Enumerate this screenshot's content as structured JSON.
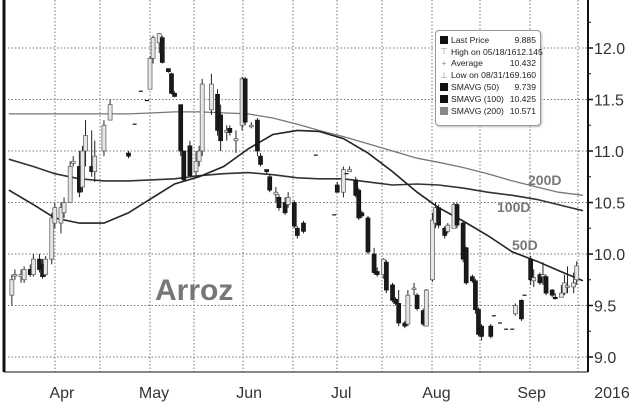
{
  "chart_data": {
    "type": "candlestick",
    "watermark": "Arroz",
    "y_ticks": [
      "12.0",
      "11.5",
      "11.0",
      "10.5",
      "10.0",
      "9.5",
      "9.0"
    ],
    "ylim": [
      8.95,
      12.45
    ],
    "x_ticks": [
      {
        "label": "Apr",
        "date": "2016-04-15"
      },
      {
        "label": "May",
        "date": "2016-05-15"
      },
      {
        "label": "Jun",
        "date": "2016-06-15"
      },
      {
        "label": "Jul",
        "date": "2016-07-15"
      },
      {
        "label": "Aug",
        "date": "2016-08-15"
      },
      {
        "label": "Sep",
        "date": "2016-09-15"
      }
    ],
    "year_label": "2016",
    "grid": true,
    "colors": {
      "up": "#e6e6e6",
      "down": "#1a1a1a",
      "ma50": "#222222",
      "ma100": "#333333",
      "ma200": "#777777",
      "watermark": "#777777"
    },
    "legend": {
      "placement": "top-right",
      "items": [
        {
          "label": "Last Price",
          "value": "9.885",
          "icon": "square-black"
        },
        {
          "label": "High on 05/18/16",
          "value": "12.145",
          "icon": "high-marker"
        },
        {
          "label": "Average",
          "value": "10.432",
          "icon": "average-marker"
        },
        {
          "label": "Low on 08/31/16",
          "value": "9.160",
          "icon": "low-marker"
        },
        {
          "label": "SMAVG (50)",
          "value": "9.739",
          "icon": "square-black"
        },
        {
          "label": "SMAVG (100)",
          "value": "10.425",
          "icon": "square-black"
        },
        {
          "label": "SMAVG (200)",
          "value": "10.571",
          "icon": "square-gray"
        }
      ]
    },
    "ma_labels": {
      "ma200": "200D",
      "ma100": "100D",
      "ma50": "50D"
    },
    "ma_dates": [
      "2016-03-30",
      "2016-04-07",
      "2016-04-14",
      "2016-04-22",
      "2016-04-30",
      "2016-05-08",
      "2016-05-16",
      "2016-05-23",
      "2016-05-31",
      "2016-06-08",
      "2016-06-16",
      "2016-06-24",
      "2016-07-02",
      "2016-07-09",
      "2016-07-17",
      "2016-07-25",
      "2016-08-02",
      "2016-08-10",
      "2016-08-17",
      "2016-08-25",
      "2016-09-02",
      "2016-09-10",
      "2016-09-18",
      "2016-09-25",
      "2016-10-03"
    ],
    "ma50": [
      10.62,
      10.48,
      10.35,
      10.3,
      10.3,
      10.4,
      10.55,
      10.68,
      10.75,
      10.85,
      11.02,
      11.16,
      11.2,
      11.19,
      11.12,
      10.98,
      10.8,
      10.6,
      10.45,
      10.32,
      10.18,
      10.02,
      9.93,
      9.84,
      9.74
    ],
    "ma100": [
      10.92,
      10.85,
      10.78,
      10.73,
      10.71,
      10.71,
      10.72,
      10.73,
      10.76,
      10.78,
      10.79,
      10.77,
      10.74,
      10.73,
      10.73,
      10.7,
      10.67,
      10.68,
      10.67,
      10.64,
      10.6,
      10.57,
      10.53,
      10.48,
      10.42
    ],
    "ma200": [
      11.36,
      11.36,
      11.36,
      11.36,
      11.36,
      11.36,
      11.37,
      11.38,
      11.38,
      11.37,
      11.36,
      11.32,
      11.26,
      11.2,
      11.14,
      11.07,
      11.0,
      10.93,
      10.89,
      10.84,
      10.78,
      10.71,
      10.65,
      10.6,
      10.57
    ],
    "candles_fields": [
      "date",
      "open",
      "high",
      "low",
      "close"
    ],
    "candles": [
      [
        "2016-03-31",
        9.6,
        9.8,
        9.5,
        9.75
      ],
      [
        "2016-04-01",
        9.8,
        9.85,
        9.75,
        9.8
      ],
      [
        "2016-04-03",
        9.78,
        9.85,
        9.72,
        9.8
      ],
      [
        "2016-04-04",
        9.75,
        9.88,
        9.72,
        9.85
      ],
      [
        "2016-04-06",
        9.85,
        9.9,
        9.78,
        9.8
      ],
      [
        "2016-04-07",
        9.8,
        10.0,
        9.78,
        9.95
      ],
      [
        "2016-04-09",
        9.95,
        10.0,
        9.82,
        9.85
      ],
      [
        "2016-04-10",
        9.9,
        9.95,
        9.76,
        9.78
      ],
      [
        "2016-04-11",
        9.8,
        9.98,
        9.78,
        9.95
      ],
      [
        "2016-04-13",
        9.95,
        10.4,
        9.9,
        10.35
      ],
      [
        "2016-04-14",
        10.3,
        10.5,
        10.25,
        10.45
      ],
      [
        "2016-04-16",
        10.3,
        10.5,
        10.2,
        10.45
      ],
      [
        "2016-04-17",
        10.4,
        10.55,
        10.35,
        10.5
      ],
      [
        "2016-04-19",
        10.5,
        10.9,
        10.5,
        10.85
      ],
      [
        "2016-04-20",
        10.88,
        10.95,
        10.85,
        10.9
      ],
      [
        "2016-04-22",
        10.85,
        11.0,
        10.55,
        10.6
      ],
      [
        "2016-04-23",
        10.65,
        11.05,
        10.6,
        11.0
      ],
      [
        "2016-04-24",
        11.0,
        11.3,
        10.85,
        11.15
      ],
      [
        "2016-04-26",
        10.85,
        11.2,
        10.75,
        10.8
      ],
      [
        "2016-04-27",
        10.8,
        11.1,
        10.7,
        10.95
      ],
      [
        "2016-04-30",
        11.0,
        11.3,
        10.95,
        11.25
      ],
      [
        "2016-05-02",
        11.3,
        11.5,
        11.3,
        11.45
      ],
      [
        "2016-05-08",
        10.98,
        11.0,
        10.93,
        10.95
      ],
      [
        "2016-05-10",
        11.26,
        11.26,
        11.26,
        11.26
      ],
      [
        "2016-05-12",
        11.58,
        11.58,
        11.58,
        11.58
      ],
      [
        "2016-05-14",
        11.49,
        11.49,
        11.49,
        11.49
      ],
      [
        "2016-05-15",
        11.6,
        11.92,
        11.6,
        11.9
      ],
      [
        "2016-05-16",
        11.9,
        12.12,
        11.85,
        12.1
      ],
      [
        "2016-05-18",
        12.05,
        12.145,
        11.95,
        12.14
      ],
      [
        "2016-05-19",
        12.1,
        12.12,
        11.85,
        11.86
      ],
      [
        "2016-05-21",
        11.8,
        11.8,
        11.76,
        11.77
      ],
      [
        "2016-05-22",
        11.75,
        11.76,
        11.55,
        11.56
      ],
      [
        "2016-05-23",
        11.56,
        11.58,
        11.52,
        11.53
      ],
      [
        "2016-05-25",
        11.45,
        11.45,
        10.95,
        11.0
      ],
      [
        "2016-05-26",
        11.0,
        11.0,
        10.7,
        10.72
      ],
      [
        "2016-05-28",
        11.05,
        11.1,
        10.75,
        10.76
      ],
      [
        "2016-05-30",
        10.8,
        11.0,
        10.75,
        10.9
      ],
      [
        "2016-05-31",
        10.9,
        11.05,
        10.85,
        11.0
      ],
      [
        "2016-06-01",
        11.0,
        11.7,
        10.95,
        11.65
      ],
      [
        "2016-06-04",
        11.4,
        11.75,
        11.35,
        11.65
      ],
      [
        "2016-06-06",
        11.55,
        11.6,
        11.15,
        11.2
      ],
      [
        "2016-06-07",
        11.35,
        11.45,
        11.0,
        11.1
      ],
      [
        "2016-06-09",
        11.18,
        11.25,
        11.1,
        11.2
      ],
      [
        "2016-06-10",
        11.22,
        11.25,
        11.15,
        11.18
      ],
      [
        "2016-06-12",
        11.1,
        11.2,
        10.98,
        11.12
      ],
      [
        "2016-06-14",
        11.25,
        11.72,
        11.2,
        11.7
      ],
      [
        "2016-06-15",
        11.7,
        11.72,
        11.25,
        11.28
      ],
      [
        "2016-06-17",
        11.25,
        11.28,
        11.22,
        11.25
      ],
      [
        "2016-06-19",
        11.3,
        11.32,
        10.95,
        11.0
      ],
      [
        "2016-06-20",
        10.95,
        10.98,
        10.85,
        10.87
      ],
      [
        "2016-06-22",
        10.82,
        10.82,
        10.78,
        10.8
      ],
      [
        "2016-06-23",
        10.75,
        10.78,
        10.6,
        10.62
      ],
      [
        "2016-06-25",
        10.58,
        10.65,
        10.5,
        10.6
      ],
      [
        "2016-06-26",
        10.55,
        10.58,
        10.42,
        10.45
      ],
      [
        "2016-06-28",
        10.5,
        10.55,
        10.38,
        10.4
      ],
      [
        "2016-06-29",
        10.48,
        10.6,
        10.45,
        10.55
      ],
      [
        "2016-07-01",
        10.5,
        10.52,
        10.25,
        10.27
      ],
      [
        "2016-07-02",
        10.25,
        10.27,
        10.15,
        10.18
      ],
      [
        "2016-07-04",
        10.3,
        10.32,
        10.2,
        10.22
      ],
      [
        "2016-07-08",
        10.96,
        10.96,
        10.96,
        10.96
      ],
      [
        "2016-07-14",
        10.38,
        10.38,
        10.38,
        10.38
      ],
      [
        "2016-07-15",
        10.67,
        10.7,
        10.6,
        10.6
      ],
      [
        "2016-07-17",
        10.6,
        10.85,
        10.55,
        10.82
      ],
      [
        "2016-07-18",
        10.78,
        10.78,
        10.78,
        10.78
      ],
      [
        "2016-07-19",
        10.8,
        10.85,
        10.8,
        10.82
      ],
      [
        "2016-07-21",
        10.72,
        10.75,
        10.55,
        10.57
      ],
      [
        "2016-07-22",
        10.62,
        10.64,
        10.33,
        10.35
      ],
      [
        "2016-07-23",
        10.4,
        10.42,
        10.35,
        10.37
      ],
      [
        "2016-07-25",
        10.35,
        10.37,
        10.0,
        10.02
      ],
      [
        "2016-07-27",
        10.0,
        10.06,
        9.8,
        9.82
      ],
      [
        "2016-07-28",
        9.83,
        9.87,
        9.78,
        9.8
      ],
      [
        "2016-07-30",
        9.8,
        9.96,
        9.76,
        9.95
      ],
      [
        "2016-07-31",
        9.92,
        9.94,
        9.62,
        9.65
      ],
      [
        "2016-08-02",
        9.7,
        9.72,
        9.53,
        9.55
      ],
      [
        "2016-08-03",
        9.56,
        9.58,
        9.5,
        9.52
      ],
      [
        "2016-08-04",
        9.52,
        9.65,
        9.3,
        9.33
      ],
      [
        "2016-08-06",
        9.33,
        9.35,
        9.28,
        9.3
      ],
      [
        "2016-08-07",
        9.32,
        9.65,
        9.3,
        9.6
      ],
      [
        "2016-08-09",
        9.66,
        9.72,
        9.6,
        9.67
      ],
      [
        "2016-08-10",
        9.6,
        9.62,
        9.45,
        9.47
      ],
      [
        "2016-08-12",
        9.45,
        9.47,
        9.3,
        9.32
      ],
      [
        "2016-08-13",
        9.3,
        9.66,
        9.3,
        9.65
      ],
      [
        "2016-08-15",
        9.75,
        10.4,
        9.73,
        10.33
      ],
      [
        "2016-08-16",
        10.3,
        10.5,
        10.25,
        10.45
      ],
      [
        "2016-08-17",
        10.45,
        10.48,
        10.25,
        10.28
      ],
      [
        "2016-08-19",
        10.25,
        10.27,
        10.15,
        10.18
      ],
      [
        "2016-08-20",
        10.22,
        10.3,
        10.2,
        10.28
      ],
      [
        "2016-08-22",
        10.25,
        10.5,
        10.25,
        10.48
      ],
      [
        "2016-08-23",
        10.48,
        10.5,
        10.25,
        10.28
      ],
      [
        "2016-08-25",
        10.3,
        10.32,
        9.92,
        9.95
      ],
      [
        "2016-08-26",
        10.06,
        10.07,
        9.7,
        9.72
      ],
      [
        "2016-08-28",
        9.78,
        9.8,
        9.72,
        9.74
      ],
      [
        "2016-08-29",
        9.74,
        9.76,
        9.42,
        9.46
      ],
      [
        "2016-08-30",
        9.46,
        9.48,
        9.2,
        9.22
      ],
      [
        "2016-08-31",
        9.3,
        9.32,
        9.16,
        9.2
      ],
      [
        "2016-09-03",
        9.3,
        9.32,
        9.18,
        9.2
      ],
      [
        "2016-09-04",
        9.4,
        9.4,
        9.4,
        9.4
      ],
      [
        "2016-09-06",
        9.33,
        9.33,
        9.33,
        9.33
      ],
      [
        "2016-09-08",
        9.27,
        9.27,
        9.27,
        9.27
      ],
      [
        "2016-09-10",
        9.27,
        9.27,
        9.27,
        9.27
      ],
      [
        "2016-09-11",
        9.42,
        9.52,
        9.4,
        9.5
      ],
      [
        "2016-09-13",
        9.55,
        9.56,
        9.35,
        9.37
      ],
      [
        "2016-09-14",
        9.6,
        9.6,
        9.6,
        9.6
      ],
      [
        "2016-09-16",
        9.95,
        9.98,
        9.7,
        9.75
      ],
      [
        "2016-09-17",
        9.74,
        9.85,
        9.68,
        9.77
      ],
      [
        "2016-09-19",
        9.8,
        9.82,
        9.7,
        9.72
      ],
      [
        "2016-09-20",
        9.78,
        9.92,
        9.7,
        9.8
      ],
      [
        "2016-09-21",
        9.78,
        9.8,
        9.6,
        9.62
      ],
      [
        "2016-09-23",
        9.65,
        9.66,
        9.58,
        9.6
      ],
      [
        "2016-09-24",
        9.58,
        9.62,
        9.56,
        9.57
      ],
      [
        "2016-09-26",
        9.58,
        9.7,
        9.58,
        9.62
      ],
      [
        "2016-09-27",
        9.62,
        9.8,
        9.6,
        9.72
      ],
      [
        "2016-09-28",
        9.68,
        9.88,
        9.62,
        9.69
      ],
      [
        "2016-09-30",
        9.68,
        9.82,
        9.62,
        9.72
      ],
      [
        "2016-10-01",
        9.75,
        9.93,
        9.7,
        9.885
      ]
    ]
  }
}
